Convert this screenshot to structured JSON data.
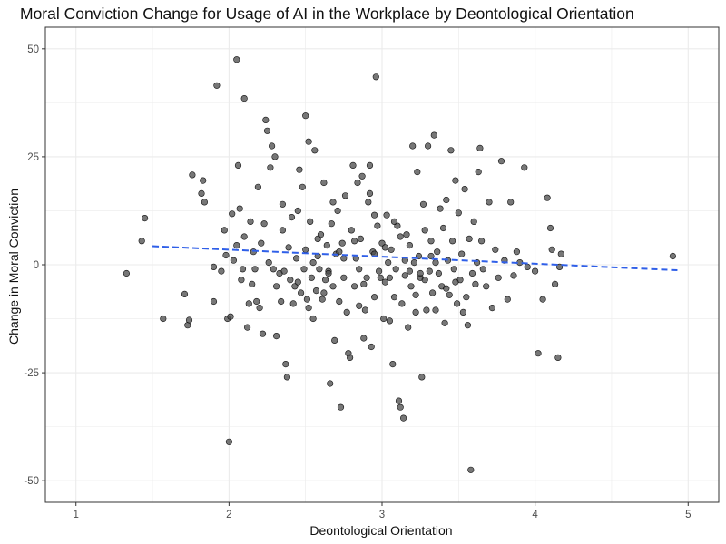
{
  "chart_data": {
    "type": "scatter",
    "title": "Moral Conviction Change for Usage of AI in the Workplace by Deontological Orientation",
    "xlabel": "Deontological Orientation",
    "ylabel": "Change in Moral Conviction",
    "xlim": [
      0.8,
      5.2
    ],
    "ylim": [
      -55,
      55
    ],
    "x_ticks": [
      1,
      2,
      3,
      4,
      5
    ],
    "x_tick_labels": [
      "1",
      "2",
      "3",
      "4",
      "5"
    ],
    "y_ticks": [
      -50,
      -25,
      0,
      25,
      50
    ],
    "y_tick_labels": [
      "-50",
      "-25",
      "0",
      "25",
      "50"
    ],
    "grid": true,
    "legend": "none",
    "colors": {
      "point_fill": "#4a4a4a",
      "point_stroke": "#000000",
      "trend_line": "#2f5fe8",
      "grid": "#ebebeb",
      "panel_border": "#333333"
    },
    "trend_line": {
      "style": "dashed",
      "x": [
        1.5,
        4.95
      ],
      "y": [
        4.3,
        -1.3
      ]
    },
    "series": [
      {
        "points": [
          [
            1.33,
            -2
          ],
          [
            1.43,
            5.5
          ],
          [
            1.45,
            10.8
          ],
          [
            1.57,
            -12.5
          ],
          [
            1.71,
            -6.8
          ],
          [
            1.73,
            -14
          ],
          [
            1.74,
            -12.8
          ],
          [
            1.76,
            20.8
          ],
          [
            1.82,
            16.5
          ],
          [
            1.83,
            19.5
          ],
          [
            1.84,
            14.5
          ],
          [
            1.9,
            -0.5
          ],
          [
            1.9,
            -8.5
          ],
          [
            1.92,
            41.5
          ],
          [
            1.95,
            -1.5
          ],
          [
            1.97,
            8
          ],
          [
            1.98,
            2.2
          ],
          [
            1.99,
            -12.5
          ],
          [
            2.0,
            -41
          ],
          [
            2.01,
            -12
          ],
          [
            2.02,
            11.8
          ],
          [
            2.03,
            1
          ],
          [
            2.05,
            47.5
          ],
          [
            2.05,
            4.5
          ],
          [
            2.06,
            23
          ],
          [
            2.07,
            13
          ],
          [
            2.08,
            -3.5
          ],
          [
            2.09,
            -1
          ],
          [
            2.1,
            6.5
          ],
          [
            2.1,
            38.5
          ],
          [
            2.12,
            -14.5
          ],
          [
            2.13,
            -9
          ],
          [
            2.14,
            10
          ],
          [
            2.15,
            -4.5
          ],
          [
            2.16,
            3
          ],
          [
            2.17,
            -1
          ],
          [
            2.18,
            -8.5
          ],
          [
            2.19,
            18
          ],
          [
            2.2,
            -10
          ],
          [
            2.21,
            5
          ],
          [
            2.22,
            -16
          ],
          [
            2.23,
            9.5
          ],
          [
            2.24,
            33.5
          ],
          [
            2.25,
            31
          ],
          [
            2.26,
            0.5
          ],
          [
            2.27,
            22.5
          ],
          [
            2.28,
            27.5
          ],
          [
            2.29,
            -1
          ],
          [
            2.3,
            25
          ],
          [
            2.31,
            -16.5
          ],
          [
            2.31,
            -5
          ],
          [
            2.33,
            -2
          ],
          [
            2.34,
            -8.5
          ],
          [
            2.35,
            14
          ],
          [
            2.36,
            -1.5
          ],
          [
            2.37,
            -23
          ],
          [
            2.38,
            -26
          ],
          [
            2.39,
            4
          ],
          [
            2.4,
            -3.5
          ],
          [
            2.41,
            11
          ],
          [
            2.42,
            -9
          ],
          [
            2.43,
            -5
          ],
          [
            2.44,
            1.5
          ],
          [
            2.46,
            22
          ],
          [
            2.47,
            -6.5
          ],
          [
            2.48,
            18
          ],
          [
            2.49,
            -1
          ],
          [
            2.5,
            34.5
          ],
          [
            2.5,
            3.5
          ],
          [
            2.51,
            -8
          ],
          [
            2.52,
            28.5
          ],
          [
            2.53,
            10
          ],
          [
            2.54,
            -3
          ],
          [
            2.55,
            -12.5
          ],
          [
            2.56,
            26.5
          ],
          [
            2.57,
            -6
          ],
          [
            2.58,
            2
          ],
          [
            2.59,
            -1
          ],
          [
            2.6,
            7
          ],
          [
            2.61,
            -8
          ],
          [
            2.62,
            19
          ],
          [
            2.63,
            -3.5
          ],
          [
            2.64,
            4.5
          ],
          [
            2.65,
            -1.5
          ],
          [
            2.66,
            -27.5
          ],
          [
            2.67,
            9.5
          ],
          [
            2.68,
            -5
          ],
          [
            2.69,
            -17.5
          ],
          [
            2.7,
            2.5
          ],
          [
            2.71,
            12.5
          ],
          [
            2.72,
            -8.5
          ],
          [
            2.73,
            -33
          ],
          [
            2.74,
            5
          ],
          [
            2.75,
            -3
          ],
          [
            2.76,
            16
          ],
          [
            2.77,
            -11
          ],
          [
            2.78,
            -20.5
          ],
          [
            2.79,
            -21.5
          ],
          [
            2.8,
            8
          ],
          [
            2.81,
            23
          ],
          [
            2.82,
            -5
          ],
          [
            2.83,
            1.5
          ],
          [
            2.84,
            19
          ],
          [
            2.85,
            -9.5
          ],
          [
            2.86,
            6
          ],
          [
            2.87,
            20.5
          ],
          [
            2.88,
            -17
          ],
          [
            2.89,
            -10.5
          ],
          [
            2.9,
            -3
          ],
          [
            2.91,
            14.5
          ],
          [
            2.92,
            23
          ],
          [
            2.93,
            -19
          ],
          [
            2.94,
            3
          ],
          [
            2.95,
            -7.5
          ],
          [
            2.96,
            43.5
          ],
          [
            2.97,
            9
          ],
          [
            2.98,
            -1.5
          ],
          [
            2.99,
            -3
          ],
          [
            3.0,
            5
          ],
          [
            3.01,
            -12.5
          ],
          [
            3.02,
            -4
          ],
          [
            3.03,
            11.5
          ],
          [
            3.04,
            0.5
          ],
          [
            3.05,
            -13
          ],
          [
            3.06,
            3.5
          ],
          [
            3.07,
            -23
          ],
          [
            3.08,
            -7.5
          ],
          [
            3.09,
            -1
          ],
          [
            3.1,
            9
          ],
          [
            3.11,
            -31.5
          ],
          [
            3.12,
            -33
          ],
          [
            3.13,
            -9
          ],
          [
            3.14,
            -35.5
          ],
          [
            3.15,
            -2.5
          ],
          [
            3.16,
            7
          ],
          [
            3.17,
            -14.5
          ],
          [
            3.18,
            4.5
          ],
          [
            3.19,
            -5
          ],
          [
            3.2,
            27.5
          ],
          [
            3.21,
            0.5
          ],
          [
            3.22,
            -11
          ],
          [
            3.23,
            21.5
          ],
          [
            3.24,
            2
          ],
          [
            3.25,
            -3
          ],
          [
            3.26,
            -26
          ],
          [
            3.27,
            14
          ],
          [
            3.28,
            8
          ],
          [
            3.29,
            -10.5
          ],
          [
            3.3,
            27.5
          ],
          [
            3.31,
            -1.5
          ],
          [
            3.32,
            5.5
          ],
          [
            3.33,
            -6.5
          ],
          [
            3.34,
            30
          ],
          [
            3.35,
            -10.5
          ],
          [
            3.36,
            3
          ],
          [
            3.37,
            -2
          ],
          [
            3.38,
            13
          ],
          [
            3.39,
            -5
          ],
          [
            3.4,
            8.5
          ],
          [
            3.41,
            -13.5
          ],
          [
            3.42,
            15
          ],
          [
            3.43,
            1
          ],
          [
            3.44,
            -7
          ],
          [
            3.45,
            26.5
          ],
          [
            3.46,
            5.5
          ],
          [
            3.47,
            -1
          ],
          [
            3.48,
            19.5
          ],
          [
            3.49,
            -9
          ],
          [
            3.5,
            12
          ],
          [
            3.51,
            -3.5
          ],
          [
            3.52,
            2.5
          ],
          [
            3.53,
            -11
          ],
          [
            3.54,
            17.5
          ],
          [
            3.55,
            -7.5
          ],
          [
            3.56,
            -14
          ],
          [
            3.57,
            6
          ],
          [
            3.58,
            -47.5
          ],
          [
            3.59,
            -2
          ],
          [
            3.6,
            10
          ],
          [
            3.61,
            -4.5
          ],
          [
            3.62,
            0.5
          ],
          [
            3.63,
            21.5
          ],
          [
            3.64,
            27
          ],
          [
            3.65,
            5.5
          ],
          [
            3.66,
            -1
          ],
          [
            3.68,
            -5
          ],
          [
            3.7,
            14.5
          ],
          [
            3.72,
            -10
          ],
          [
            3.74,
            3.5
          ],
          [
            3.76,
            -3
          ],
          [
            3.78,
            24
          ],
          [
            3.8,
            1
          ],
          [
            3.82,
            -8
          ],
          [
            3.84,
            14.5
          ],
          [
            3.86,
            -2.5
          ],
          [
            3.88,
            3
          ],
          [
            3.9,
            0.5
          ],
          [
            3.93,
            22.5
          ],
          [
            3.95,
            -0.5
          ],
          [
            4.0,
            -1.5
          ],
          [
            4.02,
            -20.5
          ],
          [
            4.05,
            -8
          ],
          [
            4.08,
            15.5
          ],
          [
            4.1,
            8.5
          ],
          [
            4.11,
            3.5
          ],
          [
            4.13,
            -4.5
          ],
          [
            4.15,
            -21.5
          ],
          [
            4.16,
            -0.5
          ],
          [
            4.17,
            2.5
          ],
          [
            4.9,
            2
          ],
          [
            2.45,
            -4
          ],
          [
            2.55,
            0.5
          ],
          [
            2.65,
            -2
          ],
          [
            2.75,
            1.5
          ],
          [
            2.85,
            -1
          ],
          [
            2.95,
            2.5
          ],
          [
            3.05,
            -3
          ],
          [
            3.15,
            1
          ],
          [
            3.25,
            -2
          ],
          [
            3.35,
            0.5
          ],
          [
            2.58,
            6
          ],
          [
            2.72,
            3
          ],
          [
            2.88,
            -4.5
          ],
          [
            3.02,
            4
          ],
          [
            3.18,
            -1.5
          ],
          [
            3.32,
            2
          ],
          [
            3.48,
            -4
          ],
          [
            2.62,
            -6.5
          ],
          [
            2.82,
            5.5
          ],
          [
            3.12,
            6.5
          ],
          [
            2.35,
            8
          ],
          [
            2.45,
            12.5
          ],
          [
            2.95,
            11.5
          ],
          [
            3.22,
            -7
          ],
          [
            3.42,
            -5.5
          ],
          [
            2.52,
            -10
          ],
          [
            2.68,
            14.5
          ],
          [
            2.92,
            16.5
          ],
          [
            3.08,
            10
          ],
          [
            3.28,
            -3.5
          ]
        ]
      }
    ]
  }
}
